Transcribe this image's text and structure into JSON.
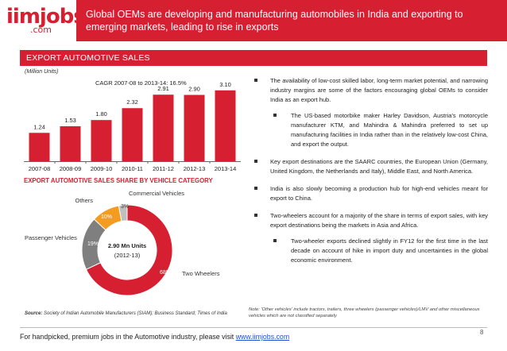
{
  "logo": {
    "main": "iimjobs",
    "sub": ".com"
  },
  "header": {
    "title": "Global OEMs are developing and manufacturing automobiles in India and exporting to emerging markets, leading to rise in exports"
  },
  "section": {
    "title": "EXPORT AUTOMOTIVE SALES"
  },
  "colors": {
    "accent": "#d62031",
    "bar": "#d62031",
    "grey": "#7f7f7f",
    "orange": "#f39c1f"
  },
  "chart_data": [
    {
      "type": "bar",
      "title": "",
      "units_label": "(Million Units)",
      "annotation": "CAGR 2007-08 to 2013-14: 16.5%",
      "categories": [
        "2007-08",
        "2008-09",
        "2009-10",
        "2010-11",
        "2011-12",
        "2012-13",
        "2013-14"
      ],
      "values": [
        1.24,
        1.53,
        1.8,
        2.32,
        2.91,
        2.9,
        3.1
      ],
      "value_labels": [
        "1.24",
        "1.53",
        "1.80",
        "2.32",
        "2.91",
        "2.90",
        "3.10"
      ],
      "ylim": [
        0,
        3.3
      ],
      "grid": false
    },
    {
      "type": "pie",
      "title": "EXPORT AUTOMOTIVE SALES SHARE BY VEHICLE CATEGORY",
      "center_label": [
        "2.90 Mn Units",
        "(2012-13)"
      ],
      "slices": [
        {
          "name": "Two Wheelers",
          "value": 68,
          "label": "68%",
          "color": "#d62031"
        },
        {
          "name": "Passenger Vehicles",
          "value": 19,
          "label": "19%",
          "color": "#7f7f7f"
        },
        {
          "name": "Others",
          "value": 10,
          "label": "10%",
          "color": "#f39c1f"
        },
        {
          "name": "Commercial Vehicles",
          "value": 3,
          "label": "3%",
          "color": "#bfbfbf"
        }
      ]
    }
  ],
  "bullets": [
    {
      "level": 1,
      "text": "The availability of low-cost skilled labor, long-term market potential, and narrowing industry margins are some of the factors encouraging global OEMs to consider India as an export hub."
    },
    {
      "level": 2,
      "text": "The US-based motorbike maker Harley Davidson, Austria's motorcycle manufacturer KTM, and Mahindra & Mahindra preferred to set up manufacturing facilities in India rather than in the relatively low-cost China, and export the output."
    },
    {
      "level": 1,
      "text": "Key export destinations are the SAARC countries, the European Union (Germany, United Kingdom, the Netherlands and Italy), Middle East, and North America."
    },
    {
      "level": 1,
      "text": "India is also slowly becoming a production hub for high-end vehicles meant for export to China."
    },
    {
      "level": 1,
      "text": "Two-wheelers account for a majority of the share in terms of export sales, with key export destinations being the markets in Asia and Africa."
    },
    {
      "level": 2,
      "text": "Two-wheeler exports declined slightly in FY12 for the first time in the last decade on account of hike in import duty and uncertainties in the global economic environment."
    }
  ],
  "source": {
    "label": "Source:",
    "text": "Society of Indian Automobile Manufacturers (SIAM); Business Standard; Times of India"
  },
  "note": "Note: 'Other vehicles' include tractors, trailers, three wheelers (passenger vehicles)/LMV and other miscellaneous vehicles which are not classified separately",
  "footer": {
    "text": "For handpicked, premium jobs in the Automotive industry, please visit ",
    "link": "www.iimjobs.com",
    "page": "8"
  }
}
